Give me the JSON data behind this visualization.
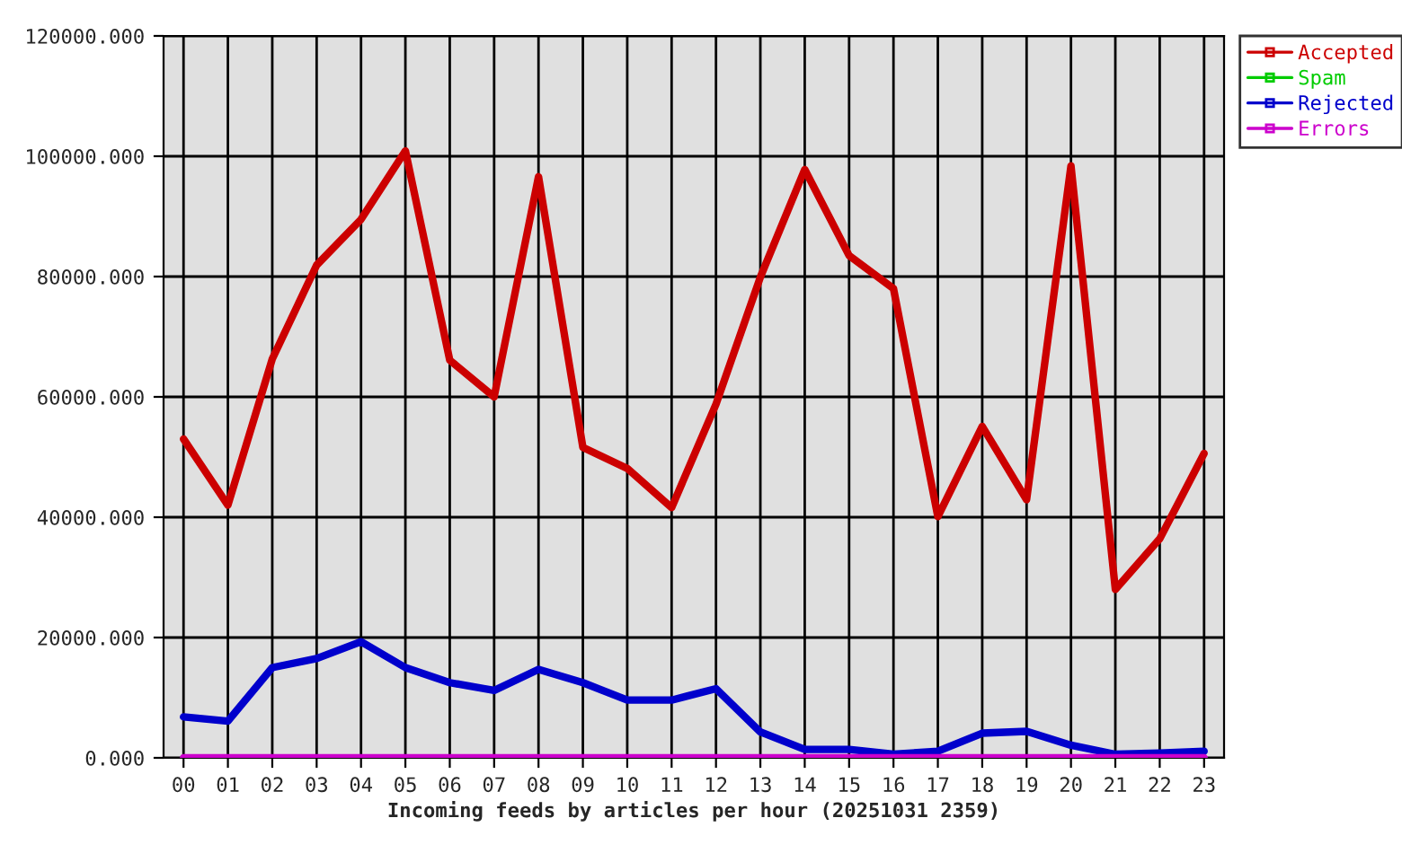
{
  "chart_data": {
    "type": "line",
    "xlabel": "Incoming feeds by articles per hour (20251031 2359)",
    "categories": [
      "00",
      "01",
      "02",
      "03",
      "04",
      "05",
      "06",
      "07",
      "08",
      "09",
      "10",
      "11",
      "12",
      "13",
      "14",
      "15",
      "16",
      "17",
      "18",
      "19",
      "20",
      "21",
      "22",
      "23"
    ],
    "series": [
      {
        "name": "Accepted",
        "color": "#cc0000",
        "values": [
          53000,
          42000,
          66300,
          81900,
          89500,
          100900,
          66100,
          60000,
          96600,
          51600,
          48100,
          41600,
          58800,
          79900,
          97800,
          83500,
          78000,
          40100,
          55100,
          42900,
          98400,
          28000,
          36400,
          50600
        ]
      },
      {
        "name": "Spam",
        "color": "#00cc00",
        "values": [
          null,
          null,
          null,
          null,
          null,
          null,
          null,
          null,
          null,
          null,
          null,
          null,
          null,
          null,
          null,
          null,
          null,
          null,
          null,
          null,
          null,
          null,
          null,
          null
        ]
      },
      {
        "name": "Rejected",
        "color": "#0000cc",
        "values": [
          6800,
          6100,
          15000,
          16500,
          19300,
          15000,
          12500,
          11200,
          14700,
          12500,
          9600,
          9600,
          11500,
          4300,
          1400,
          1400,
          600,
          1100,
          4100,
          4400,
          2100,
          600,
          800,
          1100
        ]
      },
      {
        "name": "Errors",
        "color": "#cc00cc",
        "values": [
          0,
          0,
          0,
          0,
          0,
          0,
          0,
          0,
          0,
          0,
          0,
          0,
          0,
          0,
          0,
          0,
          0,
          0,
          0,
          0,
          0,
          0,
          0,
          0
        ]
      }
    ],
    "ylim": [
      0,
      120000
    ],
    "yticks": [
      {
        "value": 0,
        "label": "0.000"
      },
      {
        "value": 20000,
        "label": "20000.000"
      },
      {
        "value": 40000,
        "label": "40000.000"
      },
      {
        "value": 60000,
        "label": "60000.000"
      },
      {
        "value": 80000,
        "label": "80000.000"
      },
      {
        "value": 100000,
        "label": "100000.000"
      },
      {
        "value": 120000,
        "label": "120000.000"
      }
    ],
    "grid": true,
    "legend": "top right",
    "marker": "none",
    "line_style": "solid"
  }
}
